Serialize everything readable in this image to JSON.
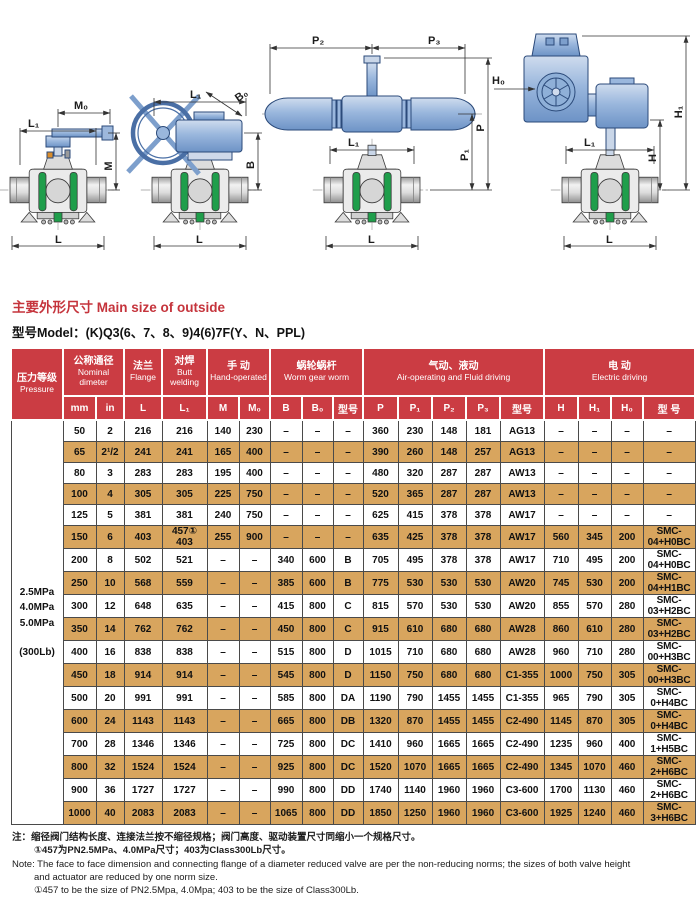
{
  "colors": {
    "header_red": "#cb3c43",
    "row_tan": "#d8a55e",
    "seat_green": "#1f9e4b",
    "actuator_blue": "#8fb0d8"
  },
  "header": {
    "title": "主要外形尺寸 Main size of outside",
    "model": "型号Model：(K)Q3(6、7、8、9)4(6)7F(Y、N、PPL)"
  },
  "drawings": {
    "labels": {
      "l": "L",
      "l1": "L₁",
      "m": "M",
      "m0": "M₀",
      "b": "B",
      "b0": "B₀",
      "p": "P",
      "p1": "P₁",
      "p2": "P₂",
      "p3": "P₃",
      "h": "H",
      "h1": "H₁",
      "h0": "H₀"
    }
  },
  "table": {
    "groups": [
      {
        "cn": "压力等级",
        "en": "Pressure"
      },
      {
        "cn": "公称通径",
        "en": "Nominal dimeter"
      },
      {
        "cn": "法兰",
        "en": "Flange"
      },
      {
        "cn": "对焊",
        "en": "Butt welding"
      },
      {
        "cn": "手 动",
        "en": "Hand-operated"
      },
      {
        "cn": "蜗轮蜗杆",
        "en": "Worm gear worm"
      },
      {
        "cn": "气动、液动",
        "en": "Air-operating and Fluid driving"
      },
      {
        "cn": "电 动",
        "en": "Electric driving"
      }
    ],
    "subheads": [
      "mm",
      "in",
      "L",
      "L₁",
      "M",
      "M₀",
      "B",
      "B₀",
      "型号",
      "P",
      "P₁",
      "P₂",
      "P₃",
      "型号",
      "H",
      "H₁",
      "H₀",
      "型 号"
    ],
    "pressure_lines": [
      "2.5MPa",
      "4.0MPa",
      "5.0MPa",
      "(300Lb)"
    ],
    "rows": [
      [
        "50",
        "2",
        "216",
        "216",
        "140",
        "230",
        "–",
        "–",
        "–",
        "360",
        "230",
        "148",
        "181",
        "AG13",
        "–",
        "–",
        "–",
        "–"
      ],
      [
        "65",
        "2¹/2",
        "241",
        "241",
        "165",
        "400",
        "–",
        "–",
        "–",
        "390",
        "260",
        "148",
        "257",
        "AG13",
        "–",
        "–",
        "–",
        "–"
      ],
      [
        "80",
        "3",
        "283",
        "283",
        "195",
        "400",
        "–",
        "–",
        "–",
        "480",
        "320",
        "287",
        "287",
        "AW13",
        "–",
        "–",
        "–",
        "–"
      ],
      [
        "100",
        "4",
        "305",
        "305",
        "225",
        "750",
        "–",
        "–",
        "–",
        "520",
        "365",
        "287",
        "287",
        "AW13",
        "–",
        "–",
        "–",
        "–"
      ],
      [
        "125",
        "5",
        "381",
        "381",
        "240",
        "750",
        "–",
        "–",
        "–",
        "625",
        "415",
        "378",
        "378",
        "AW17",
        "–",
        "–",
        "–",
        "–"
      ],
      [
        "150",
        "6",
        "403",
        "457①\n403",
        "255",
        "900",
        "–",
        "–",
        "–",
        "635",
        "425",
        "378",
        "378",
        "AW17",
        "560",
        "345",
        "200",
        "SMC-04+H0BC"
      ],
      [
        "200",
        "8",
        "502",
        "521",
        "–",
        "–",
        "340",
        "600",
        "B",
        "705",
        "495",
        "378",
        "378",
        "AW17",
        "710",
        "495",
        "200",
        "SMC-04+H0BC"
      ],
      [
        "250",
        "10",
        "568",
        "559",
        "–",
        "–",
        "385",
        "600",
        "B",
        "775",
        "530",
        "530",
        "530",
        "AW20",
        "745",
        "530",
        "200",
        "SMC-04+H1BC"
      ],
      [
        "300",
        "12",
        "648",
        "635",
        "–",
        "–",
        "415",
        "800",
        "C",
        "815",
        "570",
        "530",
        "530",
        "AW20",
        "855",
        "570",
        "280",
        "SMC-03+H2BC"
      ],
      [
        "350",
        "14",
        "762",
        "762",
        "–",
        "–",
        "450",
        "800",
        "C",
        "915",
        "610",
        "680",
        "680",
        "AW28",
        "860",
        "610",
        "280",
        "SMC-03+H2BC"
      ],
      [
        "400",
        "16",
        "838",
        "838",
        "–",
        "–",
        "515",
        "800",
        "D",
        "1015",
        "710",
        "680",
        "680",
        "AW28",
        "960",
        "710",
        "280",
        "SMC-00+H3BC"
      ],
      [
        "450",
        "18",
        "914",
        "914",
        "–",
        "–",
        "545",
        "800",
        "D",
        "1150",
        "750",
        "680",
        "680",
        "C1-355",
        "1000",
        "750",
        "305",
        "SMC-00+H3BC"
      ],
      [
        "500",
        "20",
        "991",
        "991",
        "–",
        "–",
        "585",
        "800",
        "DA",
        "1190",
        "790",
        "1455",
        "1455",
        "C1-355",
        "965",
        "790",
        "305",
        "SMC-0+H4BC"
      ],
      [
        "600",
        "24",
        "1143",
        "1143",
        "–",
        "–",
        "665",
        "800",
        "DB",
        "1320",
        "870",
        "1455",
        "1455",
        "C2-490",
        "1145",
        "870",
        "305",
        "SMC-0+H4BC"
      ],
      [
        "700",
        "28",
        "1346",
        "1346",
        "–",
        "–",
        "725",
        "800",
        "DC",
        "1410",
        "960",
        "1665",
        "1665",
        "C2-490",
        "1235",
        "960",
        "400",
        "SMC-1+H5BC"
      ],
      [
        "800",
        "32",
        "1524",
        "1524",
        "–",
        "–",
        "925",
        "800",
        "DC",
        "1520",
        "1070",
        "1665",
        "1665",
        "C2-490",
        "1345",
        "1070",
        "460",
        "SMC-2+H6BC"
      ],
      [
        "900",
        "36",
        "1727",
        "1727",
        "–",
        "–",
        "990",
        "800",
        "DD",
        "1740",
        "1140",
        "1960",
        "1960",
        "C3-600",
        "1700",
        "1130",
        "460",
        "SMC-2+H6BC"
      ],
      [
        "1000",
        "40",
        "2083",
        "2083",
        "–",
        "–",
        "1065",
        "800",
        "DD",
        "1850",
        "1250",
        "1960",
        "1960",
        "C3-600",
        "1925",
        "1240",
        "460",
        "SMC-3+H6BC"
      ]
    ]
  },
  "notes": {
    "cn1": "注：缩径阀门结构长度、连接法兰按不缩径规格；阀门高度、驱动装置尺寸同缩小一个规格尺寸。",
    "cn2": "①457为PN2.5MPa、4.0MPa尺寸；403为Class300Lb尺寸。",
    "en1": "Note: The face to face dimension and connecting flange of a diameter reduced valve are per the non-reducing norms; the sizes of both valve height",
    "en2": "and actuator are reduced by one norm size.",
    "en3": "①457 to be the size of PN2.5Mpa, 4.0Mpa; 403 to be the size of Class300Lb."
  }
}
